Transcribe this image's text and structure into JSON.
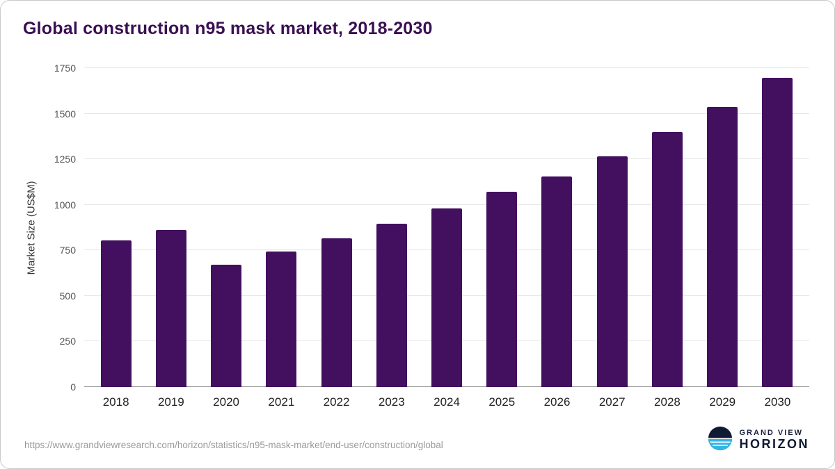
{
  "title": "Global construction n95 mask market, 2018-2030",
  "chart_data": {
    "type": "bar",
    "categories": [
      "2018",
      "2019",
      "2020",
      "2021",
      "2022",
      "2023",
      "2024",
      "2025",
      "2026",
      "2027",
      "2028",
      "2029",
      "2030"
    ],
    "values": [
      805,
      860,
      670,
      745,
      815,
      895,
      980,
      1070,
      1155,
      1265,
      1400,
      1535,
      1695
    ],
    "title": "Global construction n95 mask market, 2018-2030",
    "xlabel": "",
    "ylabel": "Market Size (US$M)",
    "ylim": [
      0,
      1750
    ],
    "yticks": [
      0,
      250,
      500,
      750,
      1000,
      1250,
      1500,
      1750
    ],
    "grid": true,
    "legend": false,
    "bar_color": "#42105f"
  },
  "colors": {
    "title": "#3a0f52",
    "bar": "#42105f",
    "gridline": "#e7e7e7",
    "axis_line": "#9b9b9b",
    "brand_navy": "#101a33",
    "brand_blue": "#33b5e8"
  },
  "footer": {
    "source_url": "https://www.grandviewresearch.com/horizon/statistics/n95-mask-market/end-user/construction/global",
    "brand_line1": "GRAND VIEW",
    "brand_line2": "HORIZON"
  }
}
